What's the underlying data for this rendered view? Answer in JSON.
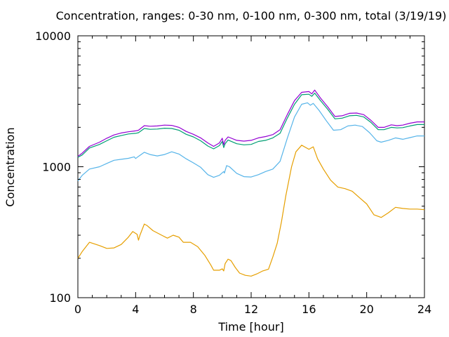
{
  "chart_data": {
    "type": "line",
    "title": "Concentration, ranges: 0-30 nm, 0-100 nm, 0-300 nm, total (3/19/19)",
    "xlabel": "Time [hour]",
    "ylabel": "Concentration",
    "xlim": [
      0,
      24
    ],
    "ylim": [
      100,
      10000
    ],
    "yscale": "log",
    "grid": false,
    "legend": "none",
    "xticks": [
      0,
      4,
      8,
      12,
      16,
      20,
      24
    ],
    "xtick_labels": [
      "0",
      "4",
      "8",
      "12",
      "16",
      "20",
      "24"
    ],
    "yticks": [
      100,
      1000,
      10000
    ],
    "ytick_labels": [
      "100",
      "1000",
      "10000"
    ],
    "series": [
      {
        "color": "#e69f00",
        "points": [
          [
            0,
            200
          ],
          [
            0.3,
            225
          ],
          [
            0.8,
            265
          ],
          [
            1.5,
            250
          ],
          [
            2,
            238
          ],
          [
            2.5,
            240
          ],
          [
            3,
            255
          ],
          [
            3.5,
            290
          ],
          [
            3.8,
            320
          ],
          [
            4.1,
            305
          ],
          [
            4.2,
            275
          ],
          [
            4.3,
            300
          ],
          [
            4.6,
            365
          ],
          [
            4.8,
            355
          ],
          [
            5.2,
            325
          ],
          [
            5.8,
            300
          ],
          [
            6.2,
            285
          ],
          [
            6.6,
            300
          ],
          [
            7,
            290
          ],
          [
            7.3,
            265
          ],
          [
            7.8,
            265
          ],
          [
            8.3,
            245
          ],
          [
            8.8,
            210
          ],
          [
            9.2,
            178
          ],
          [
            9.4,
            162
          ],
          [
            9.8,
            162
          ],
          [
            10,
            166
          ],
          [
            10.1,
            160
          ],
          [
            10.2,
            182
          ],
          [
            10.4,
            197
          ],
          [
            10.6,
            192
          ],
          [
            10.9,
            170
          ],
          [
            11.2,
            154
          ],
          [
            11.6,
            148
          ],
          [
            12,
            146
          ],
          [
            12.4,
            152
          ],
          [
            12.8,
            160
          ],
          [
            13.2,
            165
          ],
          [
            13.5,
            205
          ],
          [
            13.8,
            260
          ],
          [
            14.1,
            380
          ],
          [
            14.4,
            600
          ],
          [
            14.8,
            1000
          ],
          [
            15.1,
            1300
          ],
          [
            15.5,
            1460
          ],
          [
            16,
            1360
          ],
          [
            16.3,
            1420
          ],
          [
            16.6,
            1150
          ],
          [
            17,
            960
          ],
          [
            17.5,
            790
          ],
          [
            18,
            700
          ],
          [
            18.5,
            680
          ],
          [
            19,
            650
          ],
          [
            19.5,
            580
          ],
          [
            20,
            520
          ],
          [
            20.5,
            430
          ],
          [
            21,
            410
          ],
          [
            21.5,
            445
          ],
          [
            22,
            490
          ],
          [
            22.5,
            480
          ],
          [
            23,
            475
          ],
          [
            23.5,
            475
          ],
          [
            24,
            470
          ]
        ]
      },
      {
        "color": "#56b4e9",
        "points": [
          [
            0,
            780
          ],
          [
            0.3,
            860
          ],
          [
            0.8,
            960
          ],
          [
            1.5,
            1000
          ],
          [
            2,
            1060
          ],
          [
            2.5,
            1120
          ],
          [
            3,
            1140
          ],
          [
            3.5,
            1160
          ],
          [
            3.9,
            1190
          ],
          [
            4,
            1155
          ],
          [
            4.2,
            1200
          ],
          [
            4.6,
            1290
          ],
          [
            5,
            1240
          ],
          [
            5.5,
            1210
          ],
          [
            6,
            1240
          ],
          [
            6.5,
            1300
          ],
          [
            7,
            1250
          ],
          [
            7.5,
            1150
          ],
          [
            8,
            1070
          ],
          [
            8.5,
            990
          ],
          [
            9,
            870
          ],
          [
            9.4,
            830
          ],
          [
            9.8,
            860
          ],
          [
            10.1,
            920
          ],
          [
            10.15,
            895
          ],
          [
            10.3,
            1020
          ],
          [
            10.5,
            1000
          ],
          [
            11,
            890
          ],
          [
            11.5,
            840
          ],
          [
            12,
            835
          ],
          [
            12.5,
            870
          ],
          [
            13,
            920
          ],
          [
            13.5,
            960
          ],
          [
            14,
            1100
          ],
          [
            14.5,
            1650
          ],
          [
            15,
            2400
          ],
          [
            15.5,
            3000
          ],
          [
            15.9,
            3080
          ],
          [
            16.1,
            2950
          ],
          [
            16.3,
            3050
          ],
          [
            16.7,
            2700
          ],
          [
            17.2,
            2250
          ],
          [
            17.7,
            1900
          ],
          [
            18.2,
            1920
          ],
          [
            18.7,
            2050
          ],
          [
            19.2,
            2080
          ],
          [
            19.7,
            2030
          ],
          [
            20.2,
            1820
          ],
          [
            20.7,
            1580
          ],
          [
            21,
            1540
          ],
          [
            21.5,
            1590
          ],
          [
            22,
            1660
          ],
          [
            22.5,
            1620
          ],
          [
            23,
            1670
          ],
          [
            23.5,
            1720
          ],
          [
            24,
            1720
          ]
        ]
      },
      {
        "color": "#009e73",
        "points": [
          [
            0,
            1180
          ],
          [
            0.3,
            1230
          ],
          [
            0.8,
            1390
          ],
          [
            1.5,
            1480
          ],
          [
            2,
            1580
          ],
          [
            2.5,
            1680
          ],
          [
            3,
            1730
          ],
          [
            3.5,
            1780
          ],
          [
            4,
            1800
          ],
          [
            4.2,
            1820
          ],
          [
            4.6,
            1960
          ],
          [
            5,
            1930
          ],
          [
            5.5,
            1940
          ],
          [
            6,
            1970
          ],
          [
            6.5,
            1960
          ],
          [
            7,
            1900
          ],
          [
            7.5,
            1770
          ],
          [
            8,
            1690
          ],
          [
            8.5,
            1580
          ],
          [
            9,
            1440
          ],
          [
            9.4,
            1370
          ],
          [
            9.8,
            1450
          ],
          [
            10,
            1560
          ],
          [
            10.1,
            1400
          ],
          [
            10.2,
            1500
          ],
          [
            10.4,
            1600
          ],
          [
            11,
            1500
          ],
          [
            11.5,
            1470
          ],
          [
            12,
            1480
          ],
          [
            12.5,
            1560
          ],
          [
            13,
            1590
          ],
          [
            13.5,
            1660
          ],
          [
            14,
            1800
          ],
          [
            14.5,
            2350
          ],
          [
            15,
            3000
          ],
          [
            15.5,
            3550
          ],
          [
            16,
            3580
          ],
          [
            16.2,
            3450
          ],
          [
            16.4,
            3650
          ],
          [
            16.8,
            3200
          ],
          [
            17.3,
            2750
          ],
          [
            17.8,
            2320
          ],
          [
            18.3,
            2350
          ],
          [
            18.8,
            2450
          ],
          [
            19.3,
            2470
          ],
          [
            19.8,
            2400
          ],
          [
            20.3,
            2180
          ],
          [
            20.8,
            1920
          ],
          [
            21.2,
            1920
          ],
          [
            21.7,
            2000
          ],
          [
            22.1,
            1980
          ],
          [
            22.5,
            1990
          ],
          [
            23,
            2050
          ],
          [
            23.5,
            2100
          ],
          [
            24,
            2100
          ]
        ]
      },
      {
        "color": "#9400d3",
        "points": [
          [
            0,
            1200
          ],
          [
            0.3,
            1270
          ],
          [
            0.8,
            1430
          ],
          [
            1.5,
            1540
          ],
          [
            2,
            1650
          ],
          [
            2.5,
            1750
          ],
          [
            3,
            1810
          ],
          [
            3.5,
            1850
          ],
          [
            4,
            1880
          ],
          [
            4.2,
            1900
          ],
          [
            4.6,
            2060
          ],
          [
            5,
            2040
          ],
          [
            5.5,
            2050
          ],
          [
            6,
            2080
          ],
          [
            6.5,
            2070
          ],
          [
            7,
            2000
          ],
          [
            7.5,
            1860
          ],
          [
            8,
            1770
          ],
          [
            8.5,
            1660
          ],
          [
            9,
            1520
          ],
          [
            9.4,
            1430
          ],
          [
            9.8,
            1520
          ],
          [
            10,
            1650
          ],
          [
            10.1,
            1470
          ],
          [
            10.2,
            1590
          ],
          [
            10.4,
            1690
          ],
          [
            11,
            1590
          ],
          [
            11.5,
            1570
          ],
          [
            12,
            1590
          ],
          [
            12.5,
            1660
          ],
          [
            13,
            1700
          ],
          [
            13.5,
            1760
          ],
          [
            14,
            1920
          ],
          [
            14.5,
            2500
          ],
          [
            15,
            3200
          ],
          [
            15.5,
            3700
          ],
          [
            16,
            3750
          ],
          [
            16.2,
            3600
          ],
          [
            16.4,
            3850
          ],
          [
            16.8,
            3350
          ],
          [
            17.3,
            2870
          ],
          [
            17.8,
            2420
          ],
          [
            18.3,
            2450
          ],
          [
            18.8,
            2560
          ],
          [
            19.3,
            2570
          ],
          [
            19.8,
            2500
          ],
          [
            20.3,
            2260
          ],
          [
            20.8,
            2000
          ],
          [
            21.2,
            2000
          ],
          [
            21.7,
            2090
          ],
          [
            22.1,
            2060
          ],
          [
            22.5,
            2080
          ],
          [
            23,
            2150
          ],
          [
            23.5,
            2200
          ],
          [
            24,
            2200
          ]
        ]
      }
    ]
  }
}
